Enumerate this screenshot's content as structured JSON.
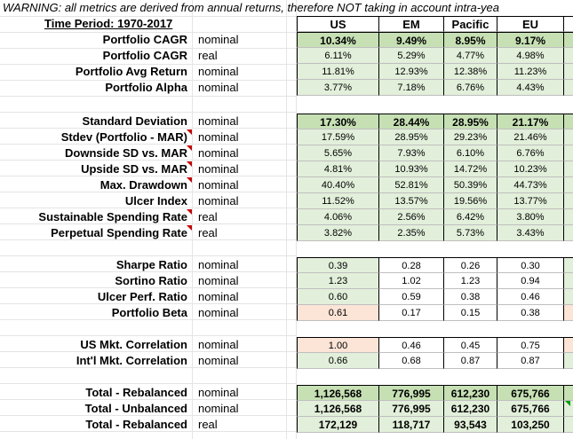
{
  "warning": "WARNING: all metrics are derived from annual returns, therefore NOT taking in account intra-yea",
  "time_period_label": "Time Period: 1970-2017",
  "headers": [
    "US",
    "EM",
    "Pacific",
    "EU"
  ],
  "colors": {
    "green_light": "#e2efda",
    "green_mid": "#c6e0b4",
    "peach": "#fce4d6",
    "comment_marker": "#c00000"
  },
  "rows": [
    {
      "label": "Portfolio CAGR",
      "kind": "nominal",
      "values": [
        "10.34%",
        "9.49%",
        "8.95%",
        "9.17%"
      ]
    },
    {
      "label": "Portfolio CAGR",
      "kind": "real",
      "values": [
        "6.11%",
        "5.29%",
        "4.77%",
        "4.98%"
      ]
    },
    {
      "label": "Portfolio Avg Return",
      "kind": "nominal",
      "values": [
        "11.81%",
        "12.93%",
        "12.38%",
        "11.23%"
      ]
    },
    {
      "label": "Portfolio Alpha",
      "kind": "nominal",
      "values": [
        "3.77%",
        "7.18%",
        "6.76%",
        "4.43%"
      ]
    },
    {
      "label": "Standard Deviation",
      "kind": "nominal",
      "values": [
        "17.30%",
        "28.44%",
        "28.95%",
        "21.17%"
      ]
    },
    {
      "label": "Stdev (Portfolio - MAR)",
      "kind": "nominal",
      "values": [
        "17.59%",
        "28.95%",
        "29.23%",
        "21.46%"
      ]
    },
    {
      "label": "Downside SD vs. MAR",
      "kind": "nominal",
      "values": [
        "5.65%",
        "7.93%",
        "6.10%",
        "6.76%"
      ]
    },
    {
      "label": "Upside SD vs. MAR",
      "kind": "nominal",
      "values": [
        "4.81%",
        "10.93%",
        "14.72%",
        "10.23%"
      ]
    },
    {
      "label": "Max. Drawdown",
      "kind": "nominal",
      "values": [
        "40.40%",
        "52.81%",
        "50.39%",
        "44.73%"
      ]
    },
    {
      "label": "Ulcer Index",
      "kind": "nominal",
      "values": [
        "11.52%",
        "13.57%",
        "19.56%",
        "13.77%"
      ]
    },
    {
      "label": "Sustainable Spending Rate",
      "kind": "real",
      "values": [
        "4.06%",
        "2.56%",
        "6.42%",
        "3.80%"
      ]
    },
    {
      "label": "Perpetual Spending Rate",
      "kind": "real",
      "values": [
        "3.82%",
        "2.35%",
        "5.73%",
        "3.43%"
      ]
    },
    {
      "label": "Sharpe Ratio",
      "kind": "nominal",
      "values": [
        "0.39",
        "0.28",
        "0.26",
        "0.30"
      ]
    },
    {
      "label": "Sortino Ratio",
      "kind": "nominal",
      "values": [
        "1.23",
        "1.02",
        "1.23",
        "0.94"
      ]
    },
    {
      "label": "Ulcer Perf. Ratio",
      "kind": "nominal",
      "values": [
        "0.60",
        "0.59",
        "0.38",
        "0.46"
      ]
    },
    {
      "label": "Portfolio Beta",
      "kind": "nominal",
      "values": [
        "0.61",
        "0.17",
        "0.15",
        "0.38"
      ]
    },
    {
      "label": "US Mkt. Correlation",
      "kind": "nominal",
      "values": [
        "1.00",
        "0.46",
        "0.45",
        "0.75"
      ]
    },
    {
      "label": "Int'l Mkt. Correlation",
      "kind": "nominal",
      "values": [
        "0.66",
        "0.68",
        "0.87",
        "0.87"
      ]
    },
    {
      "label": "Total - Rebalanced",
      "kind": "nominal",
      "values": [
        "1,126,568",
        "776,995",
        "612,230",
        "675,766"
      ]
    },
    {
      "label": "Total - Unbalanced",
      "kind": "nominal",
      "values": [
        "1,126,568",
        "776,995",
        "612,230",
        "675,766"
      ]
    },
    {
      "label": "Total - Rebalanced",
      "kind": "real",
      "values": [
        "172,129",
        "118,717",
        "93,543",
        "103,250"
      ]
    }
  ]
}
